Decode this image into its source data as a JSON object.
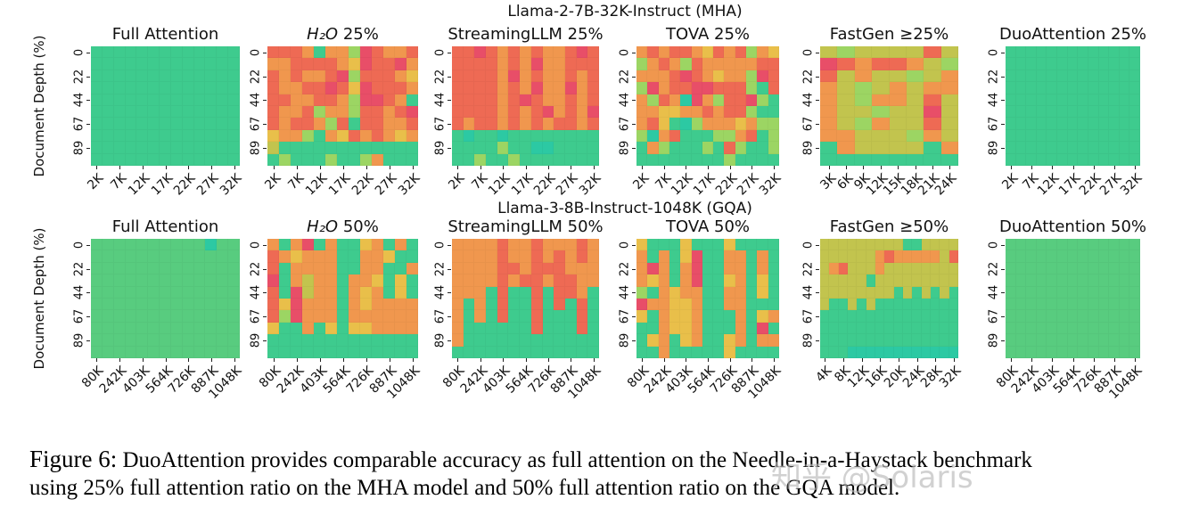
{
  "chart_data": {
    "type": "heatmap",
    "description": "Needle-in-a-Haystack benchmark accuracy heatmaps; green = retrieved, red = failed",
    "yticklabels_rotation": 90,
    "xticklabels_rotation": 45,
    "palette": {
      "G": "#3ecb8e",
      "g": "#58cc7f",
      "T": "#2cc9a3",
      "L": "#9cd563",
      "V": "#c2c44e",
      "Y": "#e9bf4a",
      "O": "#f0974e",
      "R": "#ee6a54",
      "P": "#e84e68"
    },
    "rows": [
      {
        "group_title": "Llama-2-7B-32K-Instruct (MHA)",
        "ylabel": "Document Depth (%)",
        "yticks": [
          "0",
          "22",
          "44",
          "67",
          "89"
        ],
        "panels": [
          {
            "title_parts": [
              {
                "t": "Full Attention",
                "i": 0
              }
            ],
            "xticks": [
              "2K",
              "7K",
              "12K",
              "17K",
              "22K",
              "27K",
              "32K"
            ],
            "n_cols": 13,
            "grid": [
              "GGGGGGGGGGGGG",
              "GGGGGGGGGGGGG",
              "GGGGGGGGGGGGG",
              "GGGGGGGGGGGGG",
              "GGGGGGGGGGGGG",
              "GGGGGGGGGGGGG",
              "GGGGGGGGGGGGG",
              "GGGGGGGGGGGGG",
              "GGGGGGGGGGGGG",
              "GGGGGGGGGGGGG"
            ]
          },
          {
            "title_parts": [
              {
                "t": "H₂O",
                "i": 1
              },
              {
                "t": " 25%",
                "i": 0
              }
            ],
            "xticks": [
              "2K",
              "7K",
              "12K",
              "17K",
              "22K",
              "27K",
              "32K"
            ],
            "n_cols": 13,
            "grid": [
              "RRROGOOLPROOR",
              "OORRRROYPRRPO",
              "ROROORPLRRROY",
              "ROORRPRYPRRRO",
              "RROORROLPPROG",
              "ROORLOOLRRORP",
              "RORROLRGRROOR",
              "YOOLGOYROROYO",
              "VGGGGGGGGGGGG",
              "GLGGGLGGLOGGG"
            ]
          },
          {
            "title_parts": [
              {
                "t": "StreamingLLM 25%",
                "i": 0
              }
            ],
            "xticks": [
              "2K",
              "7K",
              "12K",
              "17K",
              "22K",
              "27K",
              "32K"
            ],
            "n_cols": 13,
            "grid": [
              "RRPROROROORPR",
              "RRRROROPOORRR",
              "RRRROPOROOROR",
              "RRRROROPOOPOR",
              "RRRRORPROOROR",
              "RRRRORORPOROP",
              "RORRORORORROR",
              "GTGGTGGGGGGGG",
              "GGGGLGGTTGGGG",
              "GGLGGLGGGGGGG"
            ]
          },
          {
            "title_parts": [
              {
                "t": "TOVA 25%",
                "i": 0
              }
            ],
            "xticks": [
              "2K",
              "7K",
              "12K",
              "17K",
              "22K",
              "27K",
              "32K"
            ],
            "n_cols": 13,
            "grid": [
              "ORORROYRORLOY",
              "LOROLROOOOORR",
              "OOORPROYOOLPR",
              "LPORRPPRRRLGR",
              "OLROTPOLRRPLG",
              "OOYYOORORRLGG",
              "ORYGTLOOOYOLL",
              "LTORGGGLLORGL",
              "GOLGGGLGRLGGL",
              "GGGGGGGGLGGGG"
            ]
          },
          {
            "title_parts": [
              {
                "t": "FastGen ≥25%",
                "i": 0
              }
            ],
            "xticks": [
              "3K",
              "6K",
              "9K",
              "12K",
              "15K",
              "18K",
              "21K",
              "24K"
            ],
            "n_cols": 8,
            "grid": [
              "VLVVVVRV",
              "PRORROVL",
              "RVOVVLVO",
              "OVLVOVOO",
              "OVLOOVRV",
              "OVVLVVPV",
              "OVLOVVRV",
              "OOVVVLOV",
              "GOVVVVGO",
              "GGGGGGGG"
            ]
          },
          {
            "title_parts": [
              {
                "t": "DuoAttention 25%",
                "i": 0
              }
            ],
            "xticks": [
              "2K",
              "7K",
              "12K",
              "17K",
              "22K",
              "27K",
              "32K"
            ],
            "n_cols": 13,
            "grid": [
              "GGGGGGGGGGGGG",
              "GGGGGGGGGGGGG",
              "GGGGGGGGGGGGG",
              "GGGGGGGGGGGGG",
              "GGGGGGGGGGGGG",
              "GGGGGGGGGGGGG",
              "GGGGGGGGGGGGG",
              "GGGGGGGGGGGGG",
              "GGGGGGGGGGGGG",
              "GGGGGGGGGGGGG"
            ]
          }
        ]
      },
      {
        "group_title": "Llama-3-8B-Instruct-1048K (GQA)",
        "ylabel": "Document Depth (%)",
        "yticks": [
          "0",
          "22",
          "44",
          "67",
          "89"
        ],
        "panels": [
          {
            "title_parts": [
              {
                "t": "Full Attention",
                "i": 0
              }
            ],
            "xticks": [
              "80K",
              "242K",
              "403K",
              "564K",
              "726K",
              "887K",
              "1048K"
            ],
            "n_cols": 13,
            "grid": [
              "ggggggggggTgg",
              "ggggggggggggg",
              "ggggggggggggg",
              "ggggggggggggg",
              "ggggggggggggg",
              "ggggggggggggg",
              "ggggggggggggg",
              "ggggggggggggg",
              "ggggggggggggg",
              "ggggggggggggg"
            ]
          },
          {
            "title_parts": [
              {
                "t": "H₂O",
                "i": 1
              },
              {
                "t": " 50%",
                "i": 0
              }
            ],
            "xticks": [
              "80K",
              "242K",
              "403K",
              "564K",
              "726K",
              "887K",
              "1048K"
            ],
            "n_cols": 13,
            "grid": [
              "OGOPGOGGYOGOG",
              "ROYOOOGGOOYGG",
              "RGOOOOGGOOGGO",
              "PGOVOOGOOYGYG",
              "RGPVOOGOYOGYG",
              "RYPOOOGOYOOOO",
              "RLPOOOGOOOOOO",
              "YGGOGYGYYOOOO",
              "GGGGGGGGGGGGG",
              "GGGGGGGGGGGGG"
            ]
          },
          {
            "title_parts": [
              {
                "t": "StreamingLLM 50%",
                "i": 0
              }
            ],
            "xticks": [
              "80K",
              "242K",
              "403K",
              "564K",
              "726K",
              "887K",
              "1048K"
            ],
            "n_cols": 13,
            "grid": [
              "OOOOROOROOORO",
              "OOOOROORORORO",
              "OOOORRORRROOO",
              "OOOORORRORROO",
              "OOOGRGGRGRROG",
              "OGOGRGGRGRGRG",
              "OGOGRGGRGGGRG",
              "OGGGGGGRGGGRG",
              "OGGGGGGGGGGGG",
              "GGGGGGGGGGGGG"
            ]
          },
          {
            "title_parts": [
              {
                "t": "TOVA 50%",
                "i": 0
              }
            ],
            "xticks": [
              "80K",
              "242K",
              "403K",
              "564K",
              "726K",
              "887K",
              "1048K"
            ],
            "n_cols": 13,
            "grid": [
              "YGGGYGGGYGGGG",
              "OGOGYPGGOOGOG",
              "OPOGOPGGOOGOG",
              "OYOGOPGGYOGYG",
              "LGOYOOGGOOGYG",
              "POOYYOGGOOGGG",
              "YGOYYOGGGOGYO",
              "GGOYYOGGGOGPG",
              "GYOGYOGGYOGOO",
              "GGOGGGGGYGGGG"
            ]
          },
          {
            "title_parts": [
              {
                "t": "FastGen ≥50%",
                "i": 0
              }
            ],
            "xticks": [
              "4K",
              "8K",
              "12K",
              "16K",
              "20K",
              "24K",
              "28K",
              "32K"
            ],
            "n_cols": 15,
            "grid": [
              "VVVVVVVVVGGVVVV",
              "VVVVVVOROOOOOVR",
              "VORVVVOVVVVVVVV",
              "VVVVVGVVVVVVVVV",
              "VVVVVVVVGVGVGVG",
              "VGGVGVGGGGGGGGG",
              "GGGGGGGGGGGGGGG",
              "GGGGGGGGGGGGGGG",
              "GGGGGGGGGGGGGGG",
              "GGGTTTTTTTTTTTT"
            ]
          },
          {
            "title_parts": [
              {
                "t": "DuoAttention 50%",
                "i": 0
              }
            ],
            "xticks": [
              "80K",
              "242K",
              "403K",
              "564K",
              "726K",
              "887K",
              "1048K"
            ],
            "n_cols": 13,
            "grid": [
              "ggggggggggggg",
              "ggggggggggggg",
              "ggggggggggggg",
              "ggggggggggggg",
              "ggggggggggggg",
              "ggggggggggggg",
              "ggggggggggggg",
              "ggggggggggggg",
              "ggggggggggggg",
              "ggggggggggggg"
            ]
          }
        ]
      }
    ]
  },
  "caption": {
    "label": "Figure 6:",
    "line1": "DuoAttention provides comparable accuracy as full attention on the Needle-in-a-Haystack benchmark",
    "line2": "using 25% full attention ratio on the MHA model and 50% full attention ratio on the GQA model."
  },
  "watermark": {
    "text": "知乎 @Solaris"
  }
}
